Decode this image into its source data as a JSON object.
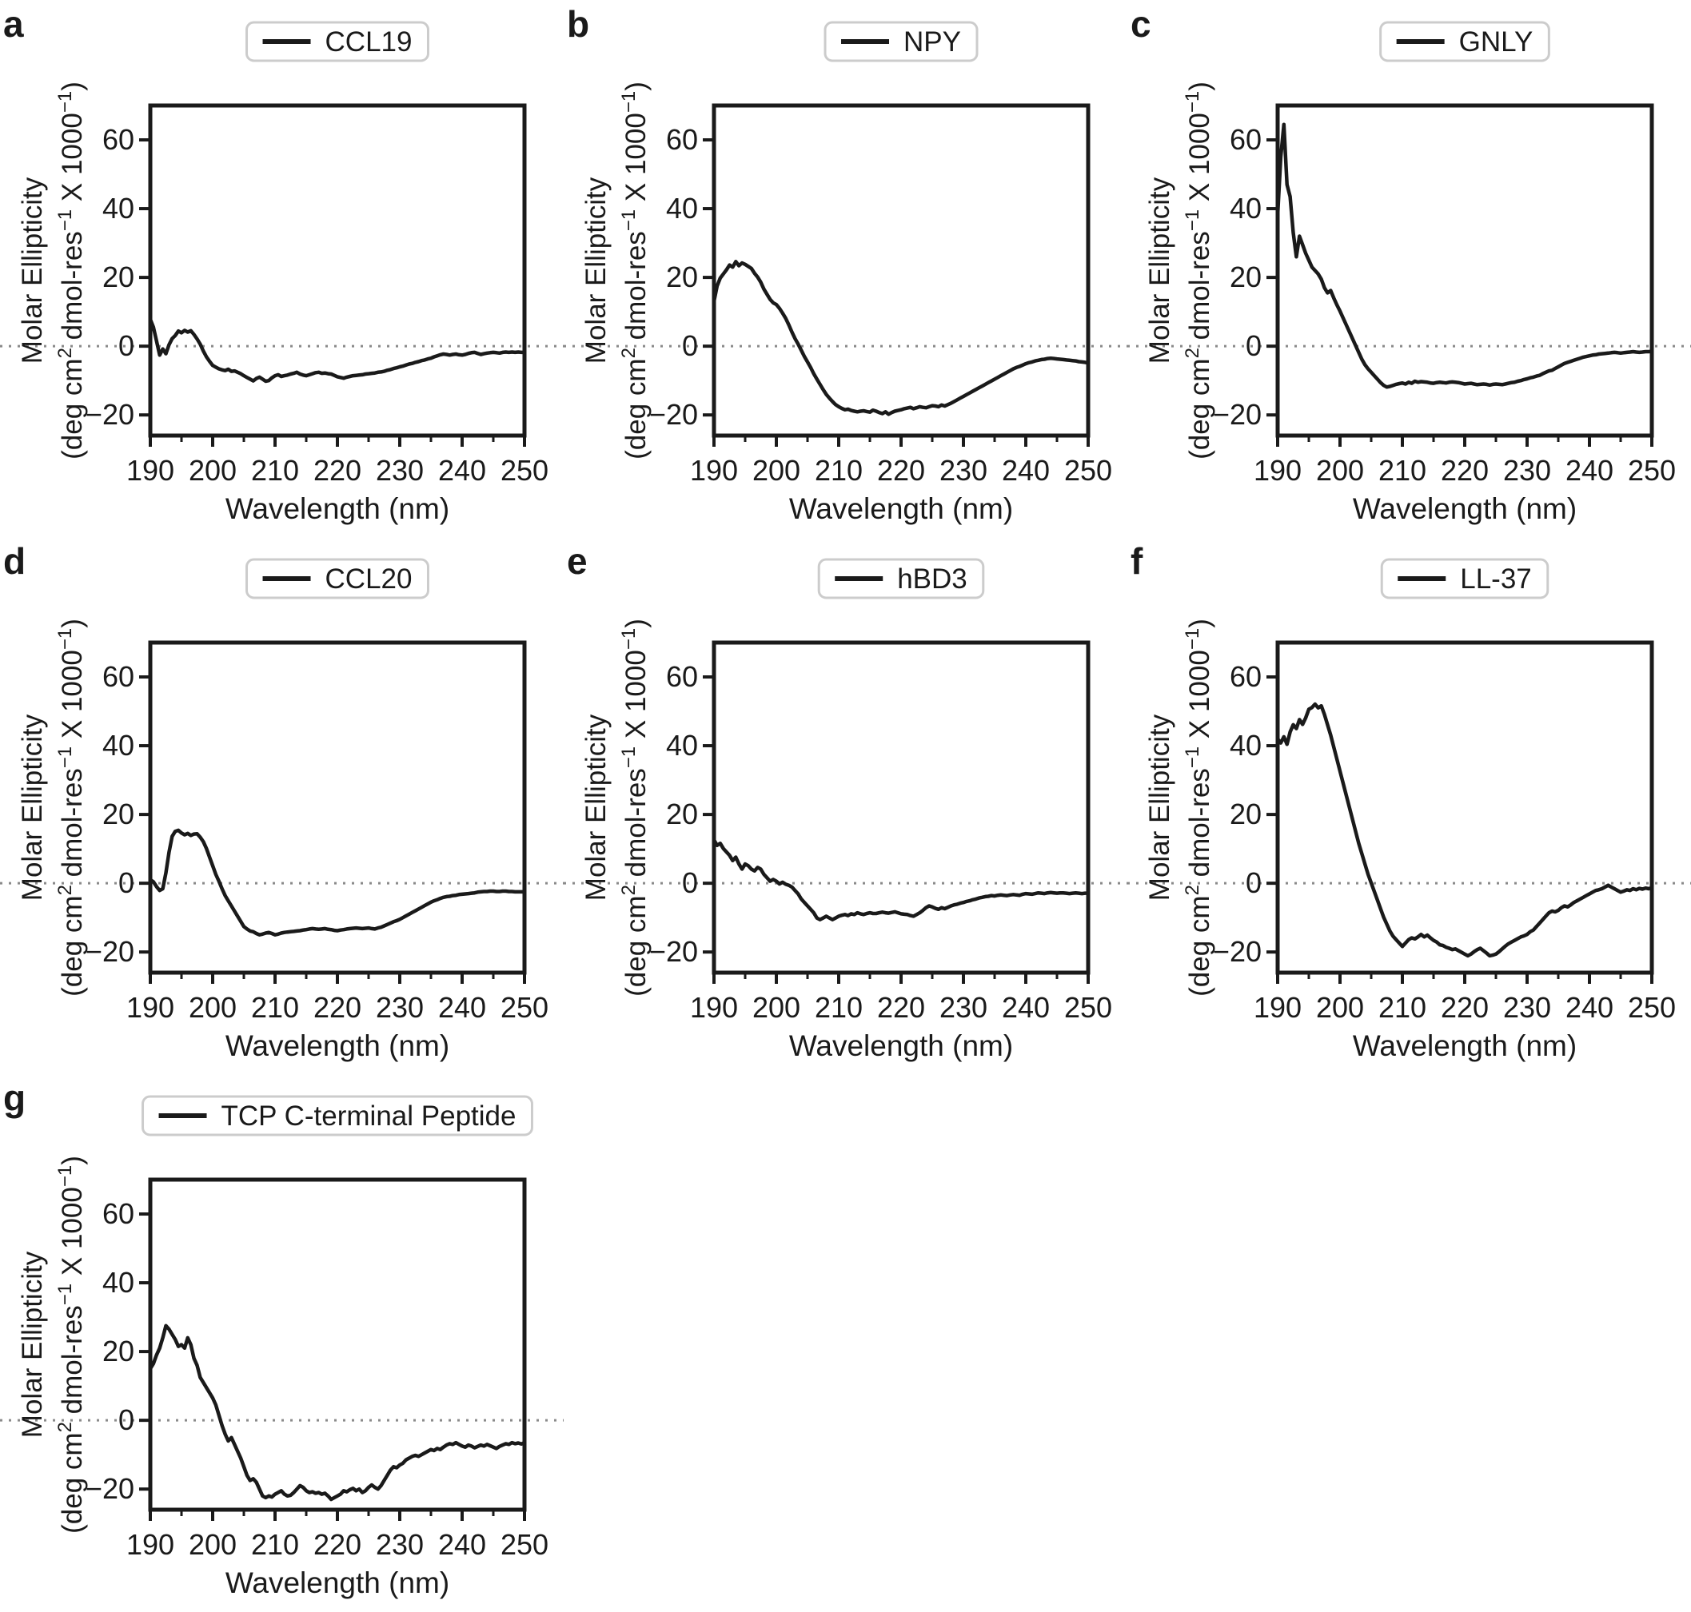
{
  "figure": {
    "description": "Circular dichroism spectra of seven peptides, panels a-g",
    "colors": {
      "curve": "#1a1a1a",
      "frame": "#1a1a1a",
      "text": "#1a1a1a",
      "zero_dotted_line": "#8a8a8a",
      "legend_border": "#cccccc",
      "legend_background": "#ffffff",
      "background": "#ffffff"
    },
    "axis": {
      "x_label": "Wavelength (nm)",
      "y_label_line1": "Molar Ellipticity",
      "y_label_units_segments": [
        {
          "t": "(deg cm",
          "sup": 0
        },
        {
          "t": "2",
          "sup": 1
        },
        {
          "t": " dmol-res",
          "sup": 0
        },
        {
          "t": "-1",
          "sup": 1
        },
        {
          "t": " X 1000",
          "sup": 0
        },
        {
          "t": "-1",
          "sup": 1
        },
        {
          "t": ")",
          "sup": 0
        }
      ],
      "x_ticks": [
        190,
        200,
        210,
        220,
        230,
        240,
        250
      ],
      "x_minor_ticks": [
        195,
        205,
        215,
        225,
        235,
        245
      ],
      "y_ticks": [
        -20,
        0,
        20,
        40,
        60
      ],
      "xlim": [
        190,
        250
      ],
      "ylim": [
        -26,
        70
      ],
      "zero_line_value": 0,
      "grid": "off",
      "legend_position": "upper center above axes"
    }
  },
  "chart_data": [
    {
      "type": "line",
      "panel": "a",
      "name": "CCL19",
      "x_start": 190,
      "x_step": 0.5,
      "x_unit": "nm",
      "values": [
        7.8,
        5.5,
        1.5,
        -2.6,
        -0.8,
        -2.2,
        0.4,
        2.2,
        3.1,
        4.4,
        3.9,
        4.6,
        4.1,
        4.5,
        3.4,
        2.1,
        0.6,
        -1.4,
        -3.1,
        -4.4,
        -5.6,
        -6.1,
        -6.6,
        -6.9,
        -7.1,
        -6.7,
        -7.3,
        -7.2,
        -7.6,
        -8.0,
        -8.6,
        -9.1,
        -9.6,
        -10.1,
        -9.4,
        -9.0,
        -9.6,
        -10.2,
        -10.0,
        -9.2,
        -8.6,
        -8.3,
        -8.8,
        -8.6,
        -8.4,
        -8.1,
        -7.9,
        -7.6,
        -8.1,
        -8.4,
        -8.6,
        -8.3,
        -8.0,
        -7.7,
        -7.6,
        -7.9,
        -7.8,
        -8.0,
        -8.1,
        -8.5,
        -8.9,
        -9.1,
        -9.3,
        -9.0,
        -8.8,
        -8.6,
        -8.5,
        -8.4,
        -8.3,
        -8.1,
        -8.0,
        -7.9,
        -7.8,
        -7.6,
        -7.5,
        -7.3,
        -7.0,
        -6.8,
        -6.5,
        -6.3,
        -6.0,
        -5.8,
        -5.5,
        -5.2,
        -5.0,
        -4.7,
        -4.5,
        -4.2,
        -4.0,
        -3.7,
        -3.5,
        -3.1,
        -2.8,
        -2.5,
        -2.3,
        -2.4,
        -2.6,
        -2.4,
        -2.3,
        -2.5,
        -2.6,
        -2.4,
        -2.1,
        -1.9,
        -1.8,
        -2.1,
        -2.4,
        -2.2,
        -2.0,
        -1.9,
        -1.8,
        -1.9,
        -2.0,
        -1.8,
        -1.7,
        -1.8,
        -1.7,
        -1.8,
        -1.7,
        -1.8,
        -1.8
      ]
    },
    {
      "type": "line",
      "panel": "b",
      "name": "NPY",
      "x_start": 190,
      "x_step": 0.5,
      "x_unit": "nm",
      "values": [
        13.0,
        17.5,
        19.8,
        21.0,
        22.2,
        23.6,
        23.0,
        24.6,
        23.4,
        24.2,
        23.8,
        23.2,
        22.6,
        21.2,
        20.1,
        18.6,
        16.6,
        15.1,
        13.6,
        12.6,
        12.1,
        11.0,
        9.6,
        8.1,
        6.2,
        4.1,
        2.2,
        0.6,
        -1.2,
        -3.0,
        -4.6,
        -6.2,
        -8.0,
        -9.6,
        -11.1,
        -12.6,
        -14.0,
        -15.1,
        -16.1,
        -17.0,
        -17.6,
        -18.1,
        -18.5,
        -18.3,
        -18.7,
        -18.9,
        -19.1,
        -18.9,
        -18.8,
        -19.0,
        -19.2,
        -18.6,
        -18.9,
        -19.3,
        -19.6,
        -19.1,
        -19.8,
        -19.3,
        -18.9,
        -18.7,
        -18.5,
        -18.2,
        -18.0,
        -17.8,
        -18.2,
        -17.9,
        -17.6,
        -17.8,
        -17.9,
        -17.6,
        -17.3,
        -17.4,
        -17.6,
        -17.1,
        -17.4,
        -17.0,
        -16.6,
        -16.1,
        -15.6,
        -15.1,
        -14.6,
        -14.1,
        -13.6,
        -13.1,
        -12.6,
        -12.1,
        -11.6,
        -11.1,
        -10.6,
        -10.1,
        -9.6,
        -9.1,
        -8.6,
        -8.1,
        -7.6,
        -7.1,
        -6.6,
        -6.2,
        -5.9,
        -5.5,
        -5.1,
        -4.8,
        -4.6,
        -4.3,
        -4.1,
        -3.9,
        -3.8,
        -3.6,
        -3.5,
        -3.6,
        -3.7,
        -3.8,
        -3.9,
        -4.0,
        -4.1,
        -4.2,
        -4.3,
        -4.5,
        -4.6,
        -4.7,
        -4.9
      ]
    },
    {
      "type": "line",
      "panel": "c",
      "name": "GNLY",
      "x_start": 190,
      "x_step": 0.5,
      "x_unit": "nm",
      "values": [
        38.0,
        55.0,
        64.5,
        47.0,
        43.5,
        33.0,
        26.0,
        32.0,
        29.5,
        27.0,
        25.0,
        23.0,
        22.0,
        21.0,
        19.5,
        17.0,
        15.5,
        16.2,
        14.0,
        12.0,
        10.2,
        8.2,
        6.2,
        4.2,
        2.2,
        0.2,
        -1.8,
        -3.8,
        -5.4,
        -6.6,
        -7.6,
        -8.6,
        -9.6,
        -10.6,
        -11.4,
        -11.9,
        -11.7,
        -11.4,
        -11.1,
        -10.9,
        -10.7,
        -11.0,
        -10.5,
        -10.8,
        -10.2,
        -10.5,
        -10.3,
        -10.4,
        -10.5,
        -10.7,
        -10.8,
        -10.6,
        -10.5,
        -10.6,
        -10.7,
        -10.5,
        -10.4,
        -10.5,
        -10.6,
        -10.8,
        -11.0,
        -10.9,
        -10.8,
        -11.0,
        -11.2,
        -11.1,
        -11.0,
        -11.1,
        -11.3,
        -11.1,
        -11.0,
        -11.1,
        -11.2,
        -11.0,
        -10.8,
        -10.6,
        -10.5,
        -10.2,
        -10.0,
        -9.7,
        -9.5,
        -9.2,
        -9.0,
        -8.7,
        -8.5,
        -8.0,
        -7.6,
        -7.2,
        -7.0,
        -6.5,
        -6.0,
        -5.5,
        -5.0,
        -4.7,
        -4.4,
        -4.1,
        -3.8,
        -3.5,
        -3.2,
        -3.0,
        -2.8,
        -2.6,
        -2.5,
        -2.3,
        -2.2,
        -2.1,
        -2.0,
        -1.9,
        -1.8,
        -1.9,
        -2.0,
        -1.9,
        -1.8,
        -1.7,
        -1.6,
        -1.7,
        -1.8,
        -1.7,
        -1.6,
        -1.6,
        -1.5
      ]
    },
    {
      "type": "line",
      "panel": "d",
      "name": "CCL20",
      "x_start": 190,
      "x_step": 0.5,
      "x_unit": "nm",
      "values": [
        1.0,
        0.4,
        -1.0,
        -2.1,
        -1.6,
        3.0,
        9.0,
        13.6,
        15.1,
        15.4,
        14.6,
        14.1,
        14.5,
        13.9,
        14.3,
        14.4,
        13.4,
        12.1,
        10.1,
        7.6,
        5.1,
        2.6,
        0.6,
        -1.6,
        -3.6,
        -5.1,
        -6.6,
        -8.1,
        -9.6,
        -11.1,
        -12.6,
        -13.3,
        -13.9,
        -14.1,
        -14.6,
        -15.0,
        -14.8,
        -14.5,
        -14.3,
        -14.6,
        -15.0,
        -14.8,
        -14.5,
        -14.3,
        -14.2,
        -14.1,
        -14.0,
        -13.9,
        -13.8,
        -13.6,
        -13.5,
        -13.3,
        -13.2,
        -13.3,
        -13.4,
        -13.3,
        -13.2,
        -13.4,
        -13.5,
        -13.7,
        -13.8,
        -13.6,
        -13.5,
        -13.3,
        -13.2,
        -13.1,
        -13.0,
        -13.1,
        -13.2,
        -13.1,
        -13.0,
        -13.2,
        -13.3,
        -13.0,
        -12.8,
        -12.4,
        -12.0,
        -11.6,
        -11.2,
        -10.9,
        -10.5,
        -10.0,
        -9.5,
        -9.0,
        -8.5,
        -8.0,
        -7.5,
        -7.0,
        -6.5,
        -6.0,
        -5.5,
        -5.1,
        -4.8,
        -4.4,
        -4.1,
        -3.9,
        -3.8,
        -3.6,
        -3.5,
        -3.3,
        -3.2,
        -3.1,
        -3.0,
        -2.9,
        -2.8,
        -2.6,
        -2.5,
        -2.4,
        -2.4,
        -2.3,
        -2.3,
        -2.4,
        -2.4,
        -2.3,
        -2.3,
        -2.4,
        -2.4,
        -2.5,
        -2.5,
        -2.5,
        -2.5
      ]
    },
    {
      "type": "line",
      "panel": "e",
      "name": "hBD3",
      "x_start": 190,
      "x_step": 0.5,
      "x_unit": "nm",
      "values": [
        12.6,
        11.0,
        11.6,
        10.1,
        9.1,
        8.1,
        6.6,
        7.6,
        5.6,
        4.1,
        5.6,
        5.1,
        4.1,
        3.6,
        4.6,
        4.1,
        2.6,
        1.6,
        0.6,
        1.1,
        0.6,
        -0.2,
        0.3,
        -0.3,
        -0.6,
        -1.1,
        -2.1,
        -3.1,
        -4.6,
        -5.6,
        -6.6,
        -7.6,
        -8.6,
        -10.1,
        -10.6,
        -10.1,
        -9.6,
        -10.1,
        -10.6,
        -10.1,
        -9.6,
        -9.3,
        -9.1,
        -9.4,
        -8.9,
        -9.1,
        -8.6,
        -8.9,
        -9.1,
        -8.8,
        -8.6,
        -8.8,
        -8.8,
        -8.6,
        -8.4,
        -8.6,
        -8.7,
        -8.5,
        -8.3,
        -8.6,
        -8.9,
        -9.0,
        -9.1,
        -9.4,
        -9.6,
        -9.1,
        -8.6,
        -7.9,
        -7.1,
        -6.6,
        -6.9,
        -7.3,
        -7.6,
        -7.1,
        -7.4,
        -7.0,
        -6.6,
        -6.3,
        -6.1,
        -5.8,
        -5.6,
        -5.3,
        -5.1,
        -4.8,
        -4.6,
        -4.3,
        -4.1,
        -3.9,
        -3.8,
        -3.6,
        -3.7,
        -3.5,
        -3.4,
        -3.5,
        -3.6,
        -3.4,
        -3.3,
        -3.4,
        -3.5,
        -3.2,
        -3.0,
        -3.1,
        -3.2,
        -3.0,
        -2.8,
        -2.9,
        -3.0,
        -2.8,
        -2.7,
        -2.8,
        -2.9,
        -2.8,
        -2.8,
        -2.9,
        -3.0,
        -2.9,
        -2.8,
        -2.9,
        -3.0,
        -2.9,
        -2.9
      ]
    },
    {
      "type": "line",
      "panel": "f",
      "name": "LL-37",
      "x_start": 190,
      "x_step": 0.5,
      "x_unit": "nm",
      "values": [
        42.0,
        40.8,
        42.6,
        40.4,
        44.0,
        46.1,
        45.0,
        47.6,
        46.2,
        48.1,
        50.6,
        51.1,
        52.1,
        51.0,
        51.6,
        49.1,
        46.1,
        43.1,
        39.6,
        36.1,
        32.6,
        29.1,
        25.6,
        22.1,
        18.6,
        15.1,
        11.6,
        8.6,
        5.6,
        2.6,
        0.1,
        -2.4,
        -4.9,
        -7.4,
        -9.9,
        -11.9,
        -13.9,
        -15.4,
        -16.4,
        -17.4,
        -18.4,
        -17.4,
        -16.4,
        -15.9,
        -16.2,
        -15.6,
        -14.9,
        -15.6,
        -15.1,
        -15.9,
        -16.6,
        -17.1,
        -17.9,
        -18.1,
        -18.6,
        -18.9,
        -19.3,
        -19.1,
        -19.6,
        -20.1,
        -20.6,
        -21.1,
        -20.6,
        -19.9,
        -19.3,
        -18.9,
        -19.6,
        -20.3,
        -21.1,
        -20.9,
        -20.6,
        -19.9,
        -19.1,
        -18.3,
        -17.6,
        -17.1,
        -16.6,
        -16.1,
        -15.6,
        -15.3,
        -14.9,
        -14.1,
        -13.6,
        -12.6,
        -11.6,
        -10.6,
        -9.6,
        -8.6,
        -8.1,
        -8.3,
        -7.9,
        -7.1,
        -6.6,
        -6.9,
        -6.3,
        -5.6,
        -5.1,
        -4.6,
        -4.1,
        -3.6,
        -3.1,
        -2.6,
        -2.1,
        -1.9,
        -1.6,
        -1.1,
        -0.6,
        -1.1,
        -1.6,
        -2.1,
        -2.6,
        -2.3,
        -1.9,
        -2.1,
        -1.6,
        -1.9,
        -1.5,
        -1.7,
        -1.4,
        -1.6,
        -1.3
      ]
    },
    {
      "type": "line",
      "panel": "g",
      "name": "TCP C-terminal Peptide",
      "x_start": 190,
      "x_step": 0.5,
      "x_unit": "nm",
      "values": [
        15.0,
        16.5,
        19.0,
        21.0,
        24.0,
        27.5,
        26.5,
        25.0,
        23.5,
        21.5,
        22.0,
        21.0,
        24.0,
        22.0,
        18.0,
        16.0,
        12.5,
        11.0,
        9.5,
        8.0,
        6.5,
        4.5,
        1.5,
        -1.5,
        -4.0,
        -6.0,
        -5.0,
        -7.0,
        -9.0,
        -11.0,
        -13.5,
        -16.0,
        -17.5,
        -17.0,
        -18.0,
        -20.0,
        -22.0,
        -22.5,
        -22.0,
        -22.3,
        -21.5,
        -21.0,
        -20.5,
        -21.5,
        -22.0,
        -21.8,
        -21.0,
        -20.0,
        -19.0,
        -19.5,
        -20.5,
        -21.0,
        -20.8,
        -21.2,
        -21.0,
        -21.5,
        -21.2,
        -22.0,
        -23.0,
        -22.5,
        -22.0,
        -21.5,
        -20.5,
        -20.8,
        -20.2,
        -19.8,
        -20.5,
        -20.0,
        -21.0,
        -20.5,
        -19.5,
        -18.8,
        -19.5,
        -20.0,
        -19.0,
        -17.5,
        -16.0,
        -14.5,
        -13.5,
        -13.8,
        -13.0,
        -12.5,
        -11.5,
        -11.0,
        -10.5,
        -10.2,
        -10.5,
        -10.0,
        -9.5,
        -9.0,
        -8.5,
        -8.8,
        -8.2,
        -8.5,
        -7.8,
        -7.2,
        -6.8,
        -7.0,
        -6.5,
        -7.0,
        -7.5,
        -7.8,
        -7.2,
        -7.5,
        -8.0,
        -7.6,
        -7.2,
        -7.5,
        -7.0,
        -7.4,
        -7.8,
        -8.2,
        -7.6,
        -7.2,
        -6.8,
        -7.0,
        -6.5,
        -6.8,
        -6.6,
        -6.9,
        -6.5
      ]
    }
  ]
}
